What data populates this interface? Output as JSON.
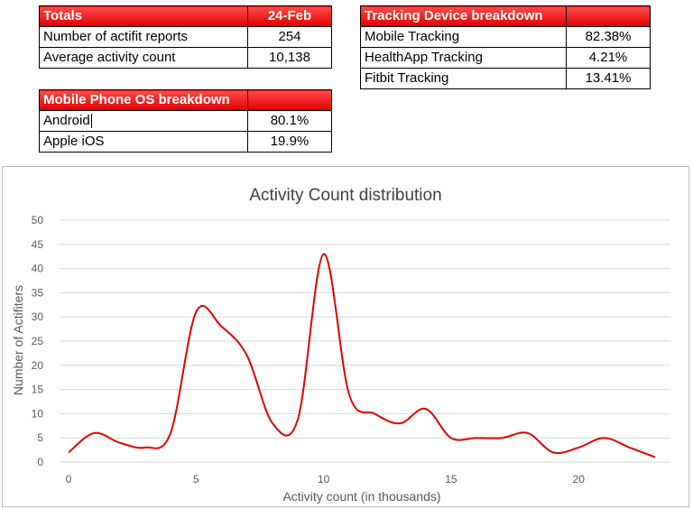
{
  "totals_table": {
    "header_label": "Totals",
    "header_value": "24-Feb",
    "rows": [
      {
        "label": "Number of actifit reports",
        "value": "254"
      },
      {
        "label": "Average activity count",
        "value": "10,138"
      }
    ]
  },
  "device_table": {
    "header_label": "Tracking Device breakdown",
    "rows": [
      {
        "label": "Mobile Tracking",
        "value": "82.38%"
      },
      {
        "label": "HealthApp Tracking",
        "value": "4.21%"
      },
      {
        "label": "Fitbit Tracking",
        "value": "13.41%"
      }
    ]
  },
  "os_table": {
    "header_label": "Mobile Phone OS breakdown",
    "rows": [
      {
        "label": "Android",
        "value": "80.1%"
      },
      {
        "label": "Apple iOS",
        "value": "19.9%"
      }
    ]
  },
  "colors": {
    "header_red": "#e00000",
    "series_line": "#e00000",
    "gridline": "#d9d9d9"
  },
  "chart_data": {
    "type": "line",
    "title": "Activity Count distribution",
    "xlabel": "Activity count (in thousands)",
    "ylabel": "Number of Actifiters",
    "xlim": [
      0,
      23
    ],
    "ylim": [
      0,
      50
    ],
    "xticks": [
      0,
      5,
      10,
      15,
      20
    ],
    "yticks": [
      0,
      5,
      10,
      15,
      20,
      25,
      30,
      35,
      40,
      45,
      50
    ],
    "grid": "horizontal",
    "smooth": true,
    "series": [
      {
        "x": [
          0,
          1,
          2,
          3,
          4,
          5,
          6,
          7,
          8,
          9,
          10,
          11,
          12,
          13,
          14,
          15,
          16,
          17,
          18,
          19,
          20,
          21,
          22,
          23
        ],
        "values": [
          2,
          6,
          4,
          3,
          6,
          31,
          28,
          22,
          8,
          9,
          43,
          14,
          10,
          8,
          11,
          5,
          5,
          5,
          6,
          2,
          3,
          5,
          3,
          1
        ]
      }
    ]
  }
}
